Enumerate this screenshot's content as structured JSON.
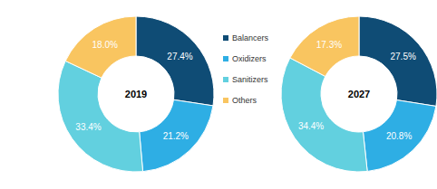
{
  "chart_data": {
    "type": "donut",
    "categories": [
      "Balancers",
      "Oxidizers",
      "Sanitizers",
      "Others"
    ],
    "colors": [
      "#0f4c75",
      "#2eaee4",
      "#62d0df",
      "#f9c560"
    ],
    "legend": "center",
    "data_labels": true,
    "series": [
      {
        "name": "2019",
        "values": [
          27.4,
          21.2,
          33.4,
          18.0
        ],
        "value_labels": [
          "27.4%",
          "21.2%",
          "33.4%",
          "18.0%"
        ]
      },
      {
        "name": "2027",
        "values": [
          27.5,
          20.8,
          34.4,
          17.3
        ],
        "value_labels": [
          "27.5%",
          "20.8%",
          "34.4%",
          "17.3%"
        ]
      }
    ]
  }
}
